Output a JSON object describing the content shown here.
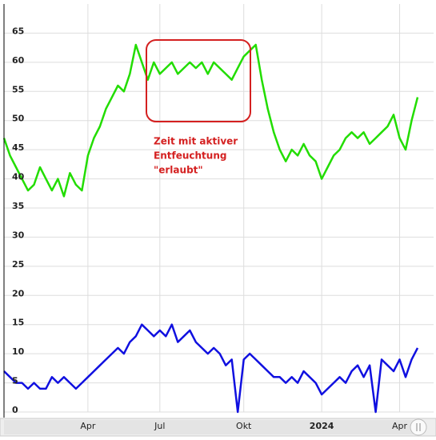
{
  "chart_data": {
    "type": "line",
    "categories": [
      null,
      null,
      null,
      null,
      null,
      null,
      null,
      null,
      null,
      null,
      null,
      null,
      null,
      null,
      "Apr",
      null,
      null,
      null,
      null,
      null,
      null,
      null,
      null,
      null,
      null,
      null,
      "Jul",
      null,
      null,
      null,
      null,
      null,
      null,
      null,
      null,
      null,
      null,
      null,
      null,
      null,
      "Okt",
      null,
      null,
      null,
      null,
      null,
      null,
      null,
      null,
      null,
      null,
      null,
      null,
      "2024",
      null,
      null,
      null,
      null,
      null,
      null,
      null,
      null,
      null,
      null,
      null,
      null,
      "Apr",
      null,
      null,
      null
    ],
    "series": [
      {
        "color": "#22dd00",
        "values": [
          47,
          44,
          42,
          40,
          38,
          39,
          42,
          40,
          38,
          40,
          37,
          41,
          39,
          38,
          44,
          47,
          49,
          52,
          54,
          56,
          55,
          58,
          63,
          60,
          57,
          60,
          58,
          59,
          60,
          58,
          59,
          60,
          59,
          60,
          58,
          60,
          59,
          58,
          57,
          59,
          61,
          62,
          63,
          57,
          52,
          48,
          45,
          43,
          45,
          44,
          46,
          44,
          43,
          40,
          42,
          44,
          45,
          47,
          48,
          47,
          48,
          46,
          47,
          48,
          49,
          51,
          47,
          45,
          50,
          54
        ]
      },
      {
        "color": "#1010e0",
        "values": [
          7,
          6,
          5,
          5,
          4,
          5,
          4,
          4,
          6,
          5,
          6,
          5,
          4,
          5,
          6,
          7,
          8,
          9,
          10,
          11,
          10,
          12,
          13,
          15,
          14,
          13,
          14,
          13,
          15,
          12,
          13,
          14,
          12,
          11,
          10,
          11,
          10,
          8,
          9,
          0,
          9,
          10,
          9,
          8,
          7,
          6,
          6,
          5,
          6,
          5,
          7,
          6,
          5,
          3,
          4,
          5,
          6,
          5,
          7,
          8,
          6,
          8,
          0,
          9,
          8,
          7,
          9,
          6,
          9,
          11
        ]
      }
    ],
    "ylim": [
      0,
      70
    ],
    "yticks": [
      0,
      5,
      10,
      15,
      20,
      25,
      30,
      35,
      40,
      45,
      50,
      55,
      60,
      65
    ],
    "grid": true,
    "annotation": [
      "Zeit mit aktiver",
      "Entfeuchtung",
      "\"erlaubt\""
    ]
  }
}
